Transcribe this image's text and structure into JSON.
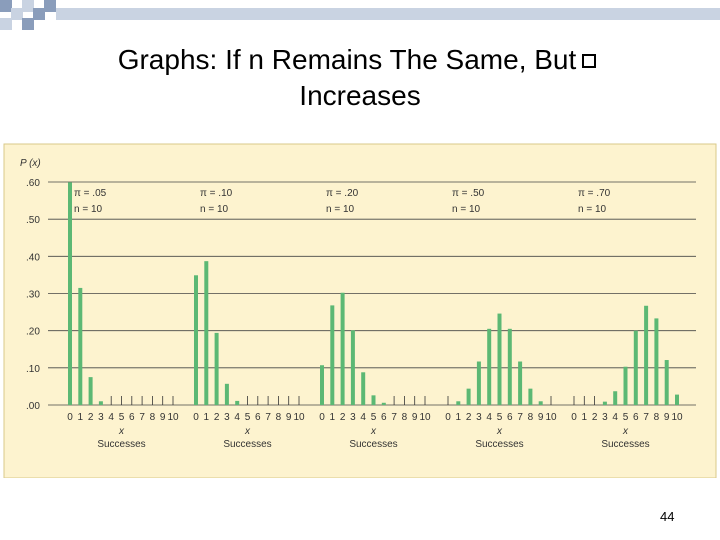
{
  "slide": {
    "title_part1": "Graphs: If n Remains The Same, But",
    "title_part2": "Increases",
    "page_number": "44"
  },
  "colors": {
    "panel_bg": "#fdf3cf",
    "bar": "#5cb874",
    "grid": "#444444",
    "deco_dark": "#8a9dbb",
    "deco_light": "#c9d3e2"
  },
  "chart_data": {
    "type": "bar",
    "ylabel": "P (x)",
    "ylim": [
      0,
      0.6
    ],
    "yticks": [
      ".00",
      ".10",
      ".20",
      ".30",
      ".40",
      ".50",
      ".60"
    ],
    "x": [
      "0",
      "1",
      "2",
      "3",
      "4",
      "5",
      "6",
      "7",
      "8",
      "9",
      "10"
    ],
    "xlabel": "x",
    "xcaption": "Successes",
    "grid": true,
    "series": [
      {
        "pi_label": "π = .05",
        "n_label": "n = 10",
        "values": [
          0.599,
          0.315,
          0.075,
          0.01,
          0.001,
          0,
          0,
          0,
          0,
          0,
          0
        ]
      },
      {
        "pi_label": "π = .10",
        "n_label": "n = 10",
        "values": [
          0.349,
          0.387,
          0.194,
          0.057,
          0.011,
          0.001,
          0,
          0,
          0,
          0,
          0
        ]
      },
      {
        "pi_label": "π = .20",
        "n_label": "n = 10",
        "values": [
          0.107,
          0.268,
          0.302,
          0.201,
          0.088,
          0.026,
          0.006,
          0.001,
          0,
          0,
          0
        ]
      },
      {
        "pi_label": "π = .50",
        "n_label": "n = 10",
        "values": [
          0.001,
          0.01,
          0.044,
          0.117,
          0.205,
          0.246,
          0.205,
          0.117,
          0.044,
          0.01,
          0.001
        ]
      },
      {
        "pi_label": "π = .70",
        "n_label": "n = 10",
        "values": [
          0,
          0,
          0.001,
          0.009,
          0.037,
          0.103,
          0.2,
          0.267,
          0.233,
          0.121,
          0.028
        ]
      }
    ]
  }
}
